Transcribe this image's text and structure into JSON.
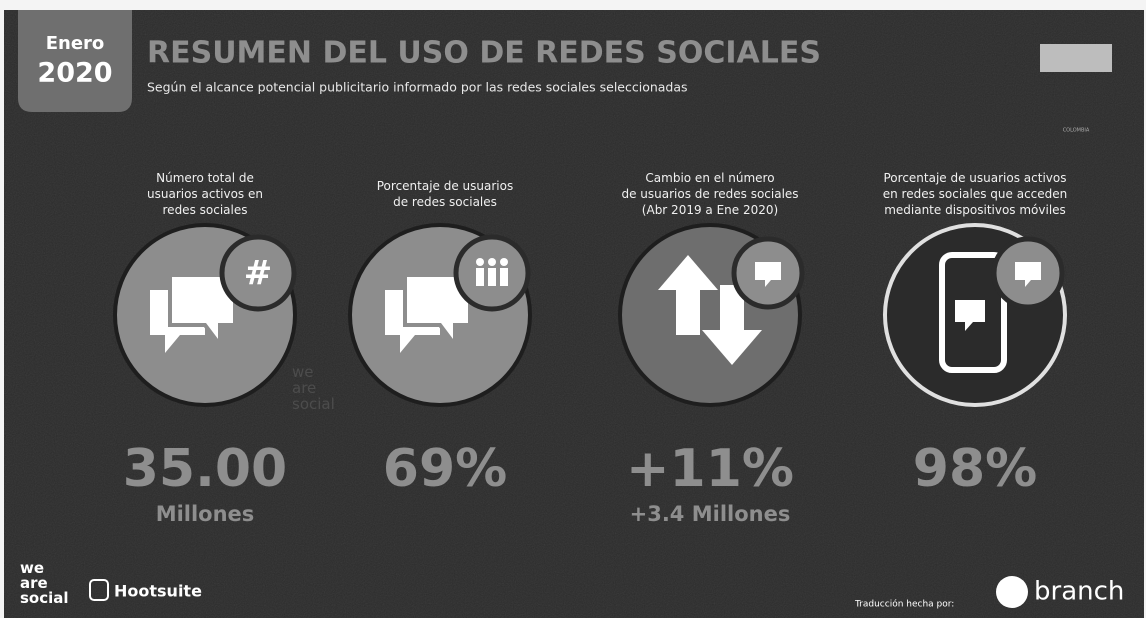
{
  "header": {
    "month": "Enero",
    "year": "2020",
    "title": "RESUMEN DEL USO DE REDES SOCIALES",
    "subtitle": "Según el alcance potencial publicitario informado por las redes sociales seleccionadas",
    "country": "COLOMBIA"
  },
  "stats": [
    {
      "label": [
        "Número total de",
        "usuarios activos en",
        "redes sociales"
      ],
      "value": "35.00",
      "sub": "Millones"
    },
    {
      "label": [
        "Porcentaje de usuarios",
        "de redes sociales"
      ],
      "value": "69%"
    },
    {
      "label": [
        "Cambio en el número",
        "de usuarios de redes sociales",
        "(Abr 2019 a Ene 2020)"
      ],
      "value": "+11%",
      "sub": "+3.4 Millones"
    },
    {
      "label": [
        "Porcentaje de usuarios activos",
        "en redes sociales que acceden",
        "mediante dispositivos móviles"
      ],
      "value": "98%"
    }
  ],
  "watermark": [
    "we",
    "are",
    "social"
  ],
  "footer": {
    "brand1": [
      "we",
      "are",
      "social"
    ],
    "brand2": "Hootsuite",
    "credit": "Traducción hecha por:",
    "brand3": "branch"
  }
}
